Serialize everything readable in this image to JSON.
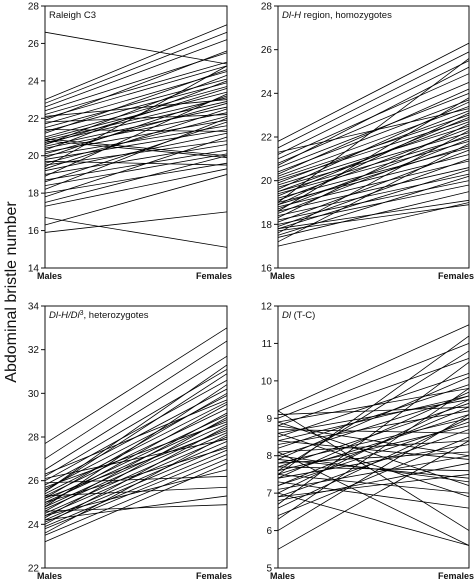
{
  "figure": {
    "ylabel": "Abdominal bristle number"
  },
  "chart_data": [
    {
      "type": "line",
      "title_parts": [
        {
          "text": "Raleigh C3",
          "italic": false
        }
      ],
      "categories": [
        "Males",
        "Females"
      ],
      "ylim": [
        14,
        28
      ],
      "yticks": [
        14,
        16,
        18,
        20,
        22,
        24,
        26,
        28
      ],
      "lines": [
        [
          26.6,
          24.9
        ],
        [
          23.0,
          27.0
        ],
        [
          22.8,
          26.6
        ],
        [
          22.6,
          26.2
        ],
        [
          22.4,
          25.5
        ],
        [
          22.2,
          25.0
        ],
        [
          22.0,
          24.8
        ],
        [
          21.9,
          25.6
        ],
        [
          21.7,
          24.5
        ],
        [
          21.5,
          24.1
        ],
        [
          21.3,
          23.9
        ],
        [
          21.2,
          24.6
        ],
        [
          21.0,
          23.7
        ],
        [
          20.9,
          23.4
        ],
        [
          20.8,
          23.1
        ],
        [
          20.7,
          22.9
        ],
        [
          20.6,
          23.6
        ],
        [
          20.5,
          22.6
        ],
        [
          20.4,
          22.3
        ],
        [
          20.3,
          24.0
        ],
        [
          20.2,
          21.9
        ],
        [
          20.1,
          22.8
        ],
        [
          20.0,
          21.6
        ],
        [
          19.9,
          23.2
        ],
        [
          19.8,
          21.4
        ],
        [
          19.6,
          22.1
        ],
        [
          19.5,
          20.8
        ],
        [
          19.3,
          22.5
        ],
        [
          19.2,
          21.2
        ],
        [
          19.0,
          20.6
        ],
        [
          18.9,
          23.3
        ],
        [
          18.7,
          20.3
        ],
        [
          18.6,
          21.8
        ],
        [
          18.4,
          20.1
        ],
        [
          18.2,
          22.0
        ],
        [
          18.0,
          19.6
        ],
        [
          17.8,
          21.0
        ],
        [
          17.5,
          20.0
        ],
        [
          17.3,
          19.3
        ],
        [
          21.4,
          21.3
        ],
        [
          20.9,
          20.0
        ],
        [
          19.7,
          19.5
        ],
        [
          22.1,
          23.0
        ],
        [
          20.6,
          24.3
        ],
        [
          16.7,
          15.1
        ],
        [
          16.3,
          19.0
        ],
        [
          15.9,
          17.0
        ],
        [
          21.8,
          22.2
        ],
        [
          19.4,
          24.8
        ],
        [
          20.8,
          19.9
        ]
      ]
    },
    {
      "type": "line",
      "title_parts": [
        {
          "text": "Dl-H",
          "italic": true
        },
        {
          "text": " region, homozygotes",
          "italic": false
        }
      ],
      "categories": [
        "Males",
        "Females"
      ],
      "ylim": [
        16,
        28
      ],
      "yticks": [
        16,
        18,
        20,
        22,
        24,
        26,
        28
      ],
      "lines": [
        [
          21.8,
          26.3
        ],
        [
          21.5,
          25.9
        ],
        [
          21.2,
          25.5
        ],
        [
          21.0,
          24.9
        ],
        [
          20.8,
          24.5
        ],
        [
          20.6,
          24.0
        ],
        [
          20.4,
          23.7
        ],
        [
          20.2,
          23.4
        ],
        [
          20.1,
          23.0
        ],
        [
          20.0,
          22.8
        ],
        [
          19.9,
          23.2
        ],
        [
          19.8,
          22.5
        ],
        [
          19.7,
          22.2
        ],
        [
          19.6,
          23.6
        ],
        [
          19.5,
          22.0
        ],
        [
          19.4,
          21.8
        ],
        [
          19.3,
          22.9
        ],
        [
          19.2,
          21.5
        ],
        [
          19.1,
          22.4
        ],
        [
          19.0,
          21.2
        ],
        [
          18.9,
          23.1
        ],
        [
          18.8,
          20.9
        ],
        [
          18.7,
          22.1
        ],
        [
          18.6,
          20.6
        ],
        [
          18.5,
          21.9
        ],
        [
          18.4,
          20.3
        ],
        [
          18.3,
          22.6
        ],
        [
          18.2,
          20.0
        ],
        [
          18.1,
          21.4
        ],
        [
          18.0,
          19.8
        ],
        [
          17.9,
          21.0
        ],
        [
          17.8,
          20.5
        ],
        [
          17.6,
          22.3
        ],
        [
          17.4,
          19.5
        ],
        [
          17.2,
          21.7
        ],
        [
          17.0,
          19.0
        ],
        [
          17.8,
          19.1
        ],
        [
          17.7,
          18.9
        ],
        [
          19.0,
          25.6
        ],
        [
          20.3,
          24.2
        ],
        [
          18.6,
          23.8
        ],
        [
          19.5,
          22.7
        ],
        [
          20.7,
          25.2
        ],
        [
          18.9,
          21.6
        ],
        [
          17.5,
          20.2
        ],
        [
          21.3,
          23.3
        ]
      ]
    },
    {
      "type": "line",
      "title_parts": [
        {
          "text": "Dl-H/Dl",
          "italic": true
        },
        {
          "text": "3",
          "italic": false,
          "sup": true
        },
        {
          "text": ", heterozygotes",
          "italic": false
        }
      ],
      "categories": [
        "Males",
        "Females"
      ],
      "ylim": [
        22,
        34
      ],
      "yticks": [
        22,
        24,
        26,
        28,
        30,
        32,
        34
      ],
      "lines": [
        [
          27.7,
          33.0
        ],
        [
          27.0,
          32.4
        ],
        [
          26.5,
          31.7
        ],
        [
          26.2,
          31.1
        ],
        [
          26.0,
          30.6
        ],
        [
          25.8,
          30.2
        ],
        [
          25.6,
          29.9
        ],
        [
          25.5,
          30.9
        ],
        [
          25.4,
          29.6
        ],
        [
          25.3,
          29.3
        ],
        [
          25.2,
          30.0
        ],
        [
          25.1,
          29.0
        ],
        [
          25.0,
          28.8
        ],
        [
          24.9,
          29.5
        ],
        [
          24.8,
          28.6
        ],
        [
          24.7,
          28.4
        ],
        [
          24.6,
          29.1
        ],
        [
          24.5,
          28.2
        ],
        [
          24.4,
          28.0
        ],
        [
          24.3,
          28.9
        ],
        [
          24.2,
          27.8
        ],
        [
          24.1,
          27.6
        ],
        [
          24.0,
          28.5
        ],
        [
          23.9,
          27.4
        ],
        [
          23.8,
          27.2
        ],
        [
          23.6,
          28.1
        ],
        [
          23.5,
          27.0
        ],
        [
          23.2,
          26.8
        ],
        [
          26.1,
          27.9
        ],
        [
          25.7,
          28.7
        ],
        [
          25.9,
          26.2
        ],
        [
          25.3,
          25.7
        ],
        [
          24.6,
          24.9
        ],
        [
          24.2,
          25.3
        ],
        [
          25.5,
          31.3
        ],
        [
          24.8,
          30.4
        ],
        [
          25.0,
          27.5
        ],
        [
          26.3,
          29.7
        ],
        [
          24.4,
          26.5
        ],
        [
          25.2,
          28.3
        ]
      ]
    },
    {
      "type": "line",
      "title_parts": [
        {
          "text": "Dl",
          "italic": true
        },
        {
          "text": " (T-C)",
          "italic": false
        }
      ],
      "categories": [
        "Males",
        "Females"
      ],
      "ylim": [
        5,
        12
      ],
      "yticks": [
        5,
        6,
        7,
        8,
        9,
        10,
        11,
        12
      ],
      "lines": [
        [
          9.2,
          11.5
        ],
        [
          9.2,
          6.0
        ],
        [
          9.0,
          11.0
        ],
        [
          8.9,
          9.8
        ],
        [
          8.8,
          10.6
        ],
        [
          8.7,
          8.6
        ],
        [
          8.6,
          9.5
        ],
        [
          8.5,
          10.2
        ],
        [
          8.4,
          7.9
        ],
        [
          8.3,
          9.2
        ],
        [
          8.2,
          9.9
        ],
        [
          8.1,
          8.4
        ],
        [
          8.0,
          9.6
        ],
        [
          8.0,
          7.3
        ],
        [
          7.9,
          10.1
        ],
        [
          7.8,
          9.0
        ],
        [
          7.8,
          8.1
        ],
        [
          7.7,
          9.4
        ],
        [
          7.7,
          7.6
        ],
        [
          7.6,
          8.8
        ],
        [
          7.6,
          10.8
        ],
        [
          7.5,
          9.1
        ],
        [
          7.5,
          7.0
        ],
        [
          7.4,
          9.7
        ],
        [
          7.4,
          8.3
        ],
        [
          7.3,
          6.6
        ],
        [
          7.2,
          9.3
        ],
        [
          7.1,
          8.0
        ],
        [
          7.0,
          5.6
        ],
        [
          7.0,
          9.5
        ],
        [
          6.9,
          8.7
        ],
        [
          6.8,
          7.8
        ],
        [
          6.7,
          10.5
        ],
        [
          6.6,
          9.0
        ],
        [
          6.4,
          8.5
        ],
        [
          6.3,
          9.8
        ],
        [
          6.0,
          9.1
        ],
        [
          5.5,
          8.4
        ],
        [
          8.9,
          7.2
        ],
        [
          8.6,
          6.9
        ],
        [
          8.1,
          5.6
        ],
        [
          7.9,
          7.4
        ],
        [
          8.4,
          9.6
        ],
        [
          7.2,
          8.9
        ],
        [
          9.1,
          9.3
        ],
        [
          7.5,
          11.2
        ],
        [
          8.8,
          8.0
        ],
        [
          6.9,
          7.5
        ]
      ]
    }
  ]
}
